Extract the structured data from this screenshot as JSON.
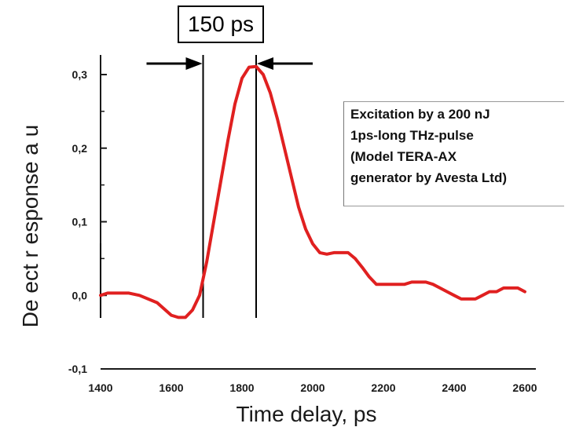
{
  "chart_data": {
    "type": "line",
    "xlabel": "Time delay, ps",
    "ylabel": "De ect  r  esponse  a u",
    "xlim": [
      1400,
      2600
    ],
    "ylim": [
      -0.1,
      0.3
    ],
    "x_ticks": [
      "1400",
      "1600",
      "1800",
      "2000",
      "2200",
      "2400",
      "2600"
    ],
    "x_tick_values": [
      1400,
      1600,
      1800,
      2000,
      2200,
      2400,
      2600
    ],
    "y_ticks": [
      "0,3",
      "0,2",
      "0,1",
      "0,0",
      "-0,1"
    ],
    "y_tick_values": [
      0.3,
      0.2,
      0.1,
      0.0,
      -0.1
    ],
    "grid": false,
    "series": [
      {
        "color": "#e02020",
        "x": [
          1400,
          1420,
          1440,
          1480,
          1510,
          1560,
          1600,
          1620,
          1640,
          1660,
          1680,
          1700,
          1720,
          1740,
          1760,
          1780,
          1800,
          1820,
          1840,
          1860,
          1880,
          1900,
          1920,
          1940,
          1960,
          1980,
          2000,
          2020,
          2040,
          2060,
          2080,
          2100,
          2120,
          2140,
          2160,
          2180,
          2200,
          2240,
          2260,
          2280,
          2300,
          2320,
          2340,
          2360,
          2380,
          2400,
          2420,
          2440,
          2460,
          2480,
          2500,
          2520,
          2540,
          2560,
          2580,
          2600
        ],
        "y": [
          0.0,
          0.003,
          0.003,
          0.003,
          0.0,
          -0.01,
          -0.027,
          -0.03,
          -0.03,
          -0.02,
          0.0,
          0.045,
          0.1,
          0.155,
          0.21,
          0.26,
          0.295,
          0.31,
          0.311,
          0.3,
          0.275,
          0.24,
          0.2,
          0.16,
          0.12,
          0.09,
          0.07,
          0.058,
          0.056,
          0.058,
          0.058,
          0.058,
          0.05,
          0.038,
          0.025,
          0.015,
          0.015,
          0.015,
          0.015,
          0.018,
          0.018,
          0.018,
          0.015,
          0.01,
          0.005,
          0.0,
          -0.005,
          -0.005,
          -0.005,
          0.0,
          0.005,
          0.005,
          0.01,
          0.01,
          0.01,
          0.005
        ]
      }
    ],
    "width_marker": {
      "label": "150 ps",
      "left_x": 1690,
      "right_x": 1840
    },
    "reference_lines_x": [
      1400,
      1690,
      1840
    ]
  },
  "annotation": {
    "lines": [
      "Excitation by a 200 nJ",
      "1ps-long THz-pulse",
      "(Model TERA-AX",
      "generator by Avesta Ltd)"
    ]
  },
  "colors": {
    "curve": "#e02020",
    "axes": "#1a1a1a"
  }
}
